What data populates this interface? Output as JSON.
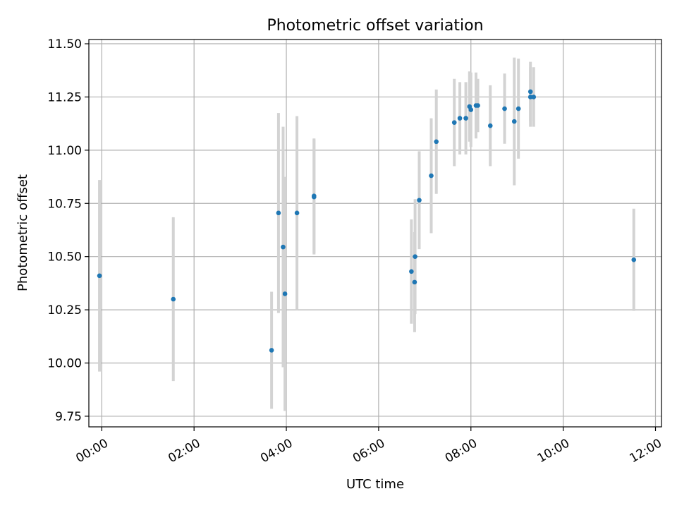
{
  "chart_data": {
    "type": "scatter",
    "title": "Photometric offset variation",
    "xlabel": "UTC time",
    "ylabel": "Photometric offset",
    "x_unit": "hours",
    "xlim": [
      -0.28,
      12.13
    ],
    "ylim": [
      9.7,
      11.52
    ],
    "grid": true,
    "legend": "none",
    "x_ticks": [
      {
        "value": 0,
        "label": "00:00"
      },
      {
        "value": 2,
        "label": "02:00"
      },
      {
        "value": 4,
        "label": "04:00"
      },
      {
        "value": 6,
        "label": "06:00"
      },
      {
        "value": 8,
        "label": "08:00"
      },
      {
        "value": 10,
        "label": "10:00"
      },
      {
        "value": 12,
        "label": "12:00"
      }
    ],
    "y_ticks": [
      {
        "value": 9.75,
        "label": "9.75"
      },
      {
        "value": 10.0,
        "label": "10.00"
      },
      {
        "value": 10.25,
        "label": "10.25"
      },
      {
        "value": 10.5,
        "label": "10.50"
      },
      {
        "value": 10.75,
        "label": "10.75"
      },
      {
        "value": 11.0,
        "label": "11.00"
      },
      {
        "value": 11.25,
        "label": "11.25"
      },
      {
        "value": 11.5,
        "label": "11.50"
      }
    ],
    "colors": {
      "point": "#1f77b4",
      "errorbar": "#d3d3d3",
      "grid": "#b0b0b0"
    },
    "points": [
      {
        "x": -0.05,
        "y": 10.41,
        "err": 0.45
      },
      {
        "x": 1.55,
        "y": 10.3,
        "err": 0.385
      },
      {
        "x": 3.68,
        "y": 10.06,
        "err": 0.275
      },
      {
        "x": 3.83,
        "y": 10.705,
        "err": 0.47
      },
      {
        "x": 3.93,
        "y": 10.545,
        "err": 0.565
      },
      {
        "x": 3.97,
        "y": 10.325,
        "err": 0.55
      },
      {
        "x": 4.23,
        "y": 10.705,
        "err": 0.455
      },
      {
        "x": 4.6,
        "y": 10.78,
        "err": 0.27
      },
      {
        "x": 4.6,
        "y": 10.785,
        "err": 0.27
      },
      {
        "x": 6.71,
        "y": 10.43,
        "err": 0.245
      },
      {
        "x": 6.78,
        "y": 10.38,
        "err": 0.235
      },
      {
        "x": 6.79,
        "y": 10.5,
        "err": 0.27
      },
      {
        "x": 6.88,
        "y": 10.765,
        "err": 0.23
      },
      {
        "x": 7.14,
        "y": 10.88,
        "err": 0.27
      },
      {
        "x": 7.25,
        "y": 11.04,
        "err": 0.245
      },
      {
        "x": 7.64,
        "y": 11.13,
        "err": 0.205
      },
      {
        "x": 7.76,
        "y": 11.15,
        "err": 0.17
      },
      {
        "x": 7.89,
        "y": 11.15,
        "err": 0.17
      },
      {
        "x": 7.97,
        "y": 11.205,
        "err": 0.165
      },
      {
        "x": 8.0,
        "y": 11.19,
        "err": 0.175
      },
      {
        "x": 8.11,
        "y": 11.21,
        "err": 0.155
      },
      {
        "x": 8.15,
        "y": 11.21,
        "err": 0.125
      },
      {
        "x": 8.42,
        "y": 11.115,
        "err": 0.19
      },
      {
        "x": 8.73,
        "y": 11.195,
        "err": 0.165
      },
      {
        "x": 8.94,
        "y": 11.135,
        "err": 0.3
      },
      {
        "x": 9.03,
        "y": 11.195,
        "err": 0.235
      },
      {
        "x": 9.29,
        "y": 11.275,
        "err": 0.14
      },
      {
        "x": 9.29,
        "y": 11.25,
        "err": 0.14
      },
      {
        "x": 9.36,
        "y": 11.25,
        "err": 0.14
      },
      {
        "x": 11.53,
        "y": 10.485,
        "err": 0.24
      }
    ]
  }
}
